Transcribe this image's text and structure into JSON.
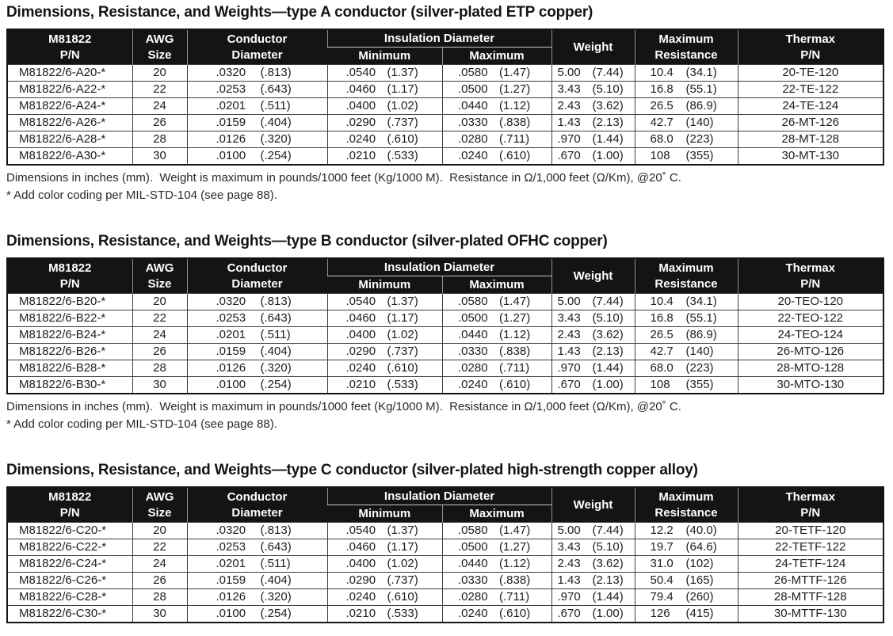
{
  "header": {
    "col_pn": [
      "M81822",
      "P/N"
    ],
    "col_awg": [
      "AWG",
      "Size"
    ],
    "col_conductor": [
      "Conductor",
      "Diameter"
    ],
    "col_insulation_group": "Insulation Diameter",
    "col_ins_min": "Minimum",
    "col_ins_max": "Maximum",
    "col_weight": "Weight",
    "col_resistance": [
      "Maximum",
      "Resistance"
    ],
    "col_thermax": [
      "Thermax",
      "P/N"
    ]
  },
  "colors": {
    "header_bg": "#141414",
    "header_text": "#ffffff",
    "body_text": "#1d1d1d",
    "border": "#141414"
  },
  "sections": [
    {
      "title": "Dimensions, Resistance, and Weights—type A conductor (silver-plated ETP copper)",
      "rows": [
        {
          "pn": "M81822/6-A20-*",
          "awg": "20",
          "cond": [
            ".0320",
            "(.813)"
          ],
          "ins_min": [
            ".0540",
            "(1.37)"
          ],
          "ins_max": [
            ".0580",
            "(1.47)"
          ],
          "weight": [
            "5.00",
            "(7.44)"
          ],
          "resistance": [
            "10.4",
            "(34.1)"
          ],
          "thermax": "20-TE-120"
        },
        {
          "pn": "M81822/6-A22-*",
          "awg": "22",
          "cond": [
            ".0253",
            "(.643)"
          ],
          "ins_min": [
            ".0460",
            "(1.17)"
          ],
          "ins_max": [
            ".0500",
            "(1.27)"
          ],
          "weight": [
            "3.43",
            "(5.10)"
          ],
          "resistance": [
            "16.8",
            "(55.1)"
          ],
          "thermax": "22-TE-122"
        },
        {
          "pn": "M81822/6-A24-*",
          "awg": "24",
          "cond": [
            ".0201",
            "(.511)"
          ],
          "ins_min": [
            ".0400",
            "(1.02)"
          ],
          "ins_max": [
            ".0440",
            "(1.12)"
          ],
          "weight": [
            "2.43",
            "(3.62)"
          ],
          "resistance": [
            "26.5",
            "(86.9)"
          ],
          "thermax": "24-TE-124"
        },
        {
          "pn": "M81822/6-A26-*",
          "awg": "26",
          "cond": [
            ".0159",
            "(.404)"
          ],
          "ins_min": [
            ".0290",
            "(.737)"
          ],
          "ins_max": [
            ".0330",
            "(.838)"
          ],
          "weight": [
            "1.43",
            "(2.13)"
          ],
          "resistance": [
            "42.7",
            "(140)"
          ],
          "thermax": "26-MT-126"
        },
        {
          "pn": "M81822/6-A28-*",
          "awg": "28",
          "cond": [
            ".0126",
            "(.320)"
          ],
          "ins_min": [
            ".0240",
            "(.610)"
          ],
          "ins_max": [
            ".0280",
            "(.711)"
          ],
          "weight": [
            ".970",
            "(1.44)"
          ],
          "resistance": [
            "68.0",
            "(223)"
          ],
          "thermax": "28-MT-128"
        },
        {
          "pn": "M81822/6-A30-*",
          "awg": "30",
          "cond": [
            ".0100",
            "(.254)"
          ],
          "ins_min": [
            ".0210",
            "(.533)"
          ],
          "ins_max": [
            ".0240",
            "(.610)"
          ],
          "weight": [
            ".670",
            "(1.00)"
          ],
          "resistance": [
            "108",
            "(355)"
          ],
          "thermax": "30-MT-130"
        }
      ],
      "notes": [
        "Dimensions in inches (mm).  Weight is maximum in pounds/1000 feet (Kg/1000 M).  Resistance in Ω/1,000 feet (Ω/Km), @20˚ C.",
        "* Add color coding per MIL-STD-104 (see page 88)."
      ]
    },
    {
      "title": "Dimensions, Resistance, and Weights—type B conductor (silver-plated OFHC copper)",
      "rows": [
        {
          "pn": "M81822/6-B20-*",
          "awg": "20",
          "cond": [
            ".0320",
            "(.813)"
          ],
          "ins_min": [
            ".0540",
            "(1.37)"
          ],
          "ins_max": [
            ".0580",
            "(1.47)"
          ],
          "weight": [
            "5.00",
            "(7.44)"
          ],
          "resistance": [
            "10.4",
            "(34.1)"
          ],
          "thermax": "20-TEO-120"
        },
        {
          "pn": "M81822/6-B22-*",
          "awg": "22",
          "cond": [
            ".0253",
            "(.643)"
          ],
          "ins_min": [
            ".0460",
            "(1.17)"
          ],
          "ins_max": [
            ".0500",
            "(1.27)"
          ],
          "weight": [
            "3.43",
            "(5.10)"
          ],
          "resistance": [
            "16.8",
            "(55.1)"
          ],
          "thermax": "22-TEO-122"
        },
        {
          "pn": "M81822/6-B24-*",
          "awg": "24",
          "cond": [
            ".0201",
            "(.511)"
          ],
          "ins_min": [
            ".0400",
            "(1.02)"
          ],
          "ins_max": [
            ".0440",
            "(1.12)"
          ],
          "weight": [
            "2.43",
            "(3.62)"
          ],
          "resistance": [
            "26.5",
            "(86.9)"
          ],
          "thermax": "24-TEO-124"
        },
        {
          "pn": "M81822/6-B26-*",
          "awg": "26",
          "cond": [
            ".0159",
            "(.404)"
          ],
          "ins_min": [
            ".0290",
            "(.737)"
          ],
          "ins_max": [
            ".0330",
            "(.838)"
          ],
          "weight": [
            "1.43",
            "(2.13)"
          ],
          "resistance": [
            "42.7",
            "(140)"
          ],
          "thermax": "26-MTO-126"
        },
        {
          "pn": "M81822/6-B28-*",
          "awg": "28",
          "cond": [
            ".0126",
            "(.320)"
          ],
          "ins_min": [
            ".0240",
            "(.610)"
          ],
          "ins_max": [
            ".0280",
            "(.711)"
          ],
          "weight": [
            ".970",
            "(1.44)"
          ],
          "resistance": [
            "68.0",
            "(223)"
          ],
          "thermax": "28-MTO-128"
        },
        {
          "pn": "M81822/6-B30-*",
          "awg": "30",
          "cond": [
            ".0100",
            "(.254)"
          ],
          "ins_min": [
            ".0210",
            "(.533)"
          ],
          "ins_max": [
            ".0240",
            "(.610)"
          ],
          "weight": [
            ".670",
            "(1.00)"
          ],
          "resistance": [
            "108",
            "(355)"
          ],
          "thermax": "30-MTO-130"
        }
      ],
      "notes": [
        "Dimensions in inches (mm).  Weight is maximum in pounds/1000 feet (Kg/1000 M).  Resistance in Ω/1,000 feet (Ω/Km), @20˚ C.",
        "* Add color coding per MIL-STD-104 (see page 88)."
      ]
    },
    {
      "title": "Dimensions, Resistance, and Weights—type C conductor (silver-plated high-strength copper alloy)",
      "rows": [
        {
          "pn": "M81822/6-C20-*",
          "awg": "20",
          "cond": [
            ".0320",
            "(.813)"
          ],
          "ins_min": [
            ".0540",
            "(1.37)"
          ],
          "ins_max": [
            ".0580",
            "(1.47)"
          ],
          "weight": [
            "5.00",
            "(7.44)"
          ],
          "resistance": [
            "12.2",
            "(40.0)"
          ],
          "thermax": "20-TETF-120"
        },
        {
          "pn": "M81822/6-C22-*",
          "awg": "22",
          "cond": [
            ".0253",
            "(.643)"
          ],
          "ins_min": [
            ".0460",
            "(1.17)"
          ],
          "ins_max": [
            ".0500",
            "(1.27)"
          ],
          "weight": [
            "3.43",
            "(5.10)"
          ],
          "resistance": [
            "19.7",
            "(64.6)"
          ],
          "thermax": "22-TETF-122"
        },
        {
          "pn": "M81822/6-C24-*",
          "awg": "24",
          "cond": [
            ".0201",
            "(.511)"
          ],
          "ins_min": [
            ".0400",
            "(1.02)"
          ],
          "ins_max": [
            ".0440",
            "(1.12)"
          ],
          "weight": [
            "2.43",
            "(3.62)"
          ],
          "resistance": [
            "31.0",
            "(102)"
          ],
          "thermax": "24-TETF-124"
        },
        {
          "pn": "M81822/6-C26-*",
          "awg": "26",
          "cond": [
            ".0159",
            "(.404)"
          ],
          "ins_min": [
            ".0290",
            "(.737)"
          ],
          "ins_max": [
            ".0330",
            "(.838)"
          ],
          "weight": [
            "1.43",
            "(2.13)"
          ],
          "resistance": [
            "50.4",
            "(165)"
          ],
          "thermax": "26-MTTF-126"
        },
        {
          "pn": "M81822/6-C28-*",
          "awg": "28",
          "cond": [
            ".0126",
            "(.320)"
          ],
          "ins_min": [
            ".0240",
            "(.610)"
          ],
          "ins_max": [
            ".0280",
            "(.711)"
          ],
          "weight": [
            ".970",
            "(1.44)"
          ],
          "resistance": [
            "79.4",
            "(260)"
          ],
          "thermax": "28-MTTF-128"
        },
        {
          "pn": "M81822/6-C30-*",
          "awg": "30",
          "cond": [
            ".0100",
            "(.254)"
          ],
          "ins_min": [
            ".0210",
            "(.533)"
          ],
          "ins_max": [
            ".0240",
            "(.610)"
          ],
          "weight": [
            ".670",
            "(1.00)"
          ],
          "resistance": [
            "126",
            "(415)"
          ],
          "thermax": "30-MTTF-130"
        }
      ],
      "notes": []
    }
  ]
}
